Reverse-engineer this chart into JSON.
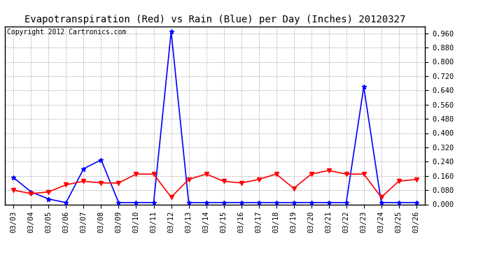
{
  "title": "Evapotranspiration (Red) vs Rain (Blue) per Day (Inches) 20120327",
  "copyright": "Copyright 2012 Cartronics.com",
  "dates": [
    "03/03",
    "03/04",
    "03/05",
    "03/06",
    "03/07",
    "03/08",
    "03/09",
    "03/10",
    "03/11",
    "03/12",
    "03/13",
    "03/14",
    "03/15",
    "03/16",
    "03/17",
    "03/18",
    "03/19",
    "03/20",
    "03/21",
    "03/22",
    "03/23",
    "03/24",
    "03/25",
    "03/26"
  ],
  "rain": [
    0.15,
    0.07,
    0.03,
    0.01,
    0.2,
    0.25,
    0.01,
    0.01,
    0.01,
    0.97,
    0.01,
    0.01,
    0.01,
    0.01,
    0.01,
    0.01,
    0.01,
    0.01,
    0.01,
    0.01,
    0.66,
    0.01,
    0.01,
    0.01
  ],
  "et": [
    0.08,
    0.06,
    0.07,
    0.11,
    0.13,
    0.12,
    0.12,
    0.17,
    0.17,
    0.04,
    0.14,
    0.17,
    0.13,
    0.12,
    0.14,
    0.17,
    0.09,
    0.17,
    0.19,
    0.17,
    0.17,
    0.04,
    0.13,
    0.14
  ],
  "rain_color": "#0000FF",
  "et_color": "#FF0000",
  "bg_color": "#FFFFFF",
  "grid_color": "#999999",
  "ylim": [
    0.0,
    1.0
  ],
  "yticks": [
    0.0,
    0.08,
    0.16,
    0.24,
    0.32,
    0.4,
    0.48,
    0.56,
    0.64,
    0.72,
    0.8,
    0.88,
    0.96
  ],
  "title_fontsize": 10,
  "copyright_fontsize": 7,
  "tick_fontsize": 7.5,
  "figwidth": 6.9,
  "figheight": 3.75,
  "dpi": 100
}
